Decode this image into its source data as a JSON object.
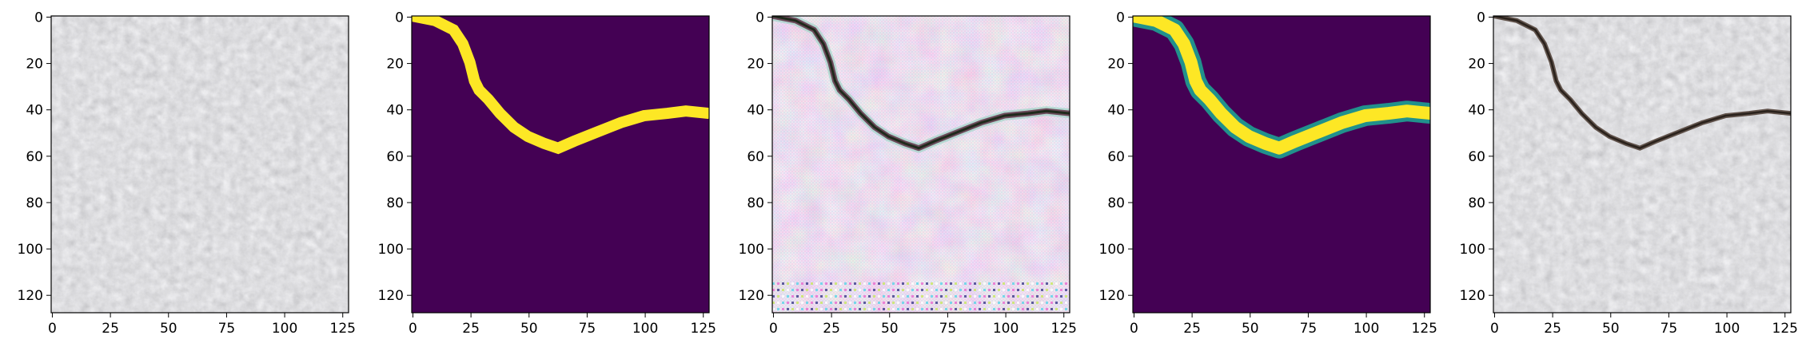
{
  "figure": {
    "panel_count": 5,
    "colors": {
      "background": "#ffffff",
      "viridis_dark": "#440154",
      "viridis_yellow": "#fde725",
      "viridis_green": "#21918c"
    },
    "panels": [
      {
        "id": "panel-1",
        "kind": "photo-gray",
        "description_key": "concrete surface input",
        "x_ticks": [
          "0",
          "25",
          "50",
          "75",
          "100",
          "125"
        ],
        "y_ticks": [
          "0",
          "20",
          "40",
          "60",
          "80",
          "100",
          "120"
        ]
      },
      {
        "id": "panel-2",
        "kind": "mask-binary",
        "x_ticks": [
          "0",
          "25",
          "50",
          "75",
          "100",
          "125"
        ],
        "y_ticks": [
          "0",
          "20",
          "40",
          "60",
          "80",
          "100",
          "120"
        ]
      },
      {
        "id": "panel-3",
        "kind": "generated-crack",
        "x_ticks": [
          "0",
          "25",
          "50",
          "75",
          "100",
          "125"
        ],
        "y_ticks": [
          "0",
          "20",
          "40",
          "60",
          "80",
          "100",
          "120"
        ]
      },
      {
        "id": "panel-4",
        "kind": "mask-soft",
        "x_ticks": [
          "0",
          "25",
          "50",
          "75",
          "100",
          "125"
        ],
        "y_ticks": [
          "0",
          "20",
          "40",
          "60",
          "80",
          "100",
          "120"
        ]
      },
      {
        "id": "panel-5",
        "kind": "photo-crack",
        "x_ticks": [
          "0",
          "25",
          "50",
          "75",
          "100",
          "125"
        ],
        "y_ticks": [
          "0",
          "20",
          "40",
          "60",
          "80",
          "100",
          "120"
        ]
      }
    ],
    "axis_range": {
      "x": [
        0,
        128
      ],
      "y": [
        0,
        128
      ]
    }
  }
}
